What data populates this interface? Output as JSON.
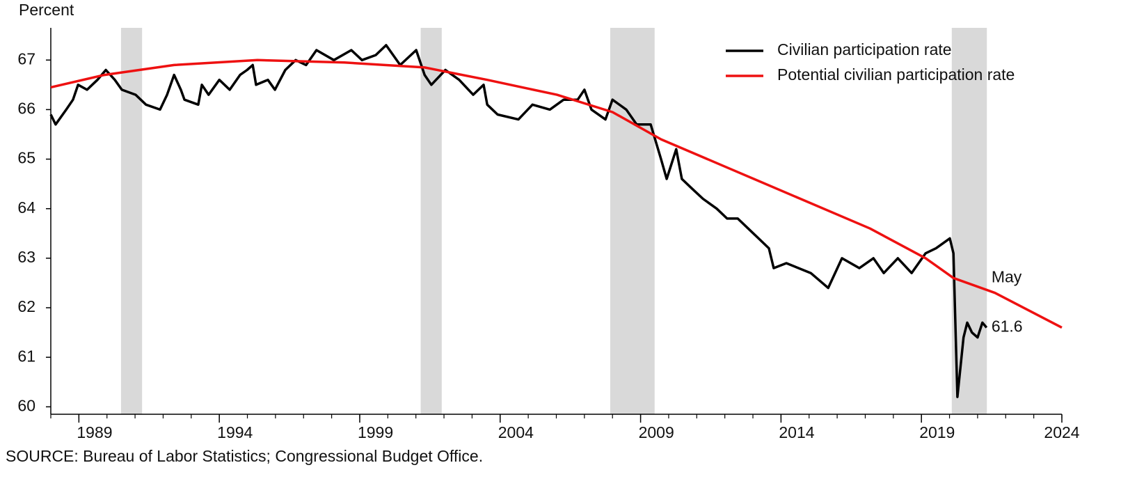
{
  "chart_data": {
    "type": "line",
    "y_axis_label": "Percent",
    "source": "SOURCE: Bureau of Labor Statistics; Congressional Budget Office.",
    "annotations": [
      "May",
      "61.6"
    ],
    "xlim": [
      1988,
      2024
    ],
    "xticks": [
      1989,
      1994,
      1999,
      2004,
      2009,
      2014,
      2019,
      2024
    ],
    "ylim": [
      59.85,
      67.65
    ],
    "yticks": [
      60,
      61,
      62,
      63,
      64,
      65,
      66,
      67
    ],
    "shaded_periods": [
      [
        1990.5,
        1991.25
      ],
      [
        2001.17,
        2001.92
      ],
      [
        2007.92,
        2009.5
      ],
      [
        2020.08,
        2021.33
      ]
    ],
    "shade_color": "#d9d9d9",
    "legend": "upper right",
    "series": [
      {
        "name": "Civilian participation rate",
        "color": "#000000",
        "x": [
          1988,
          1988.17,
          1988.55,
          1988.79,
          1988.97,
          1989.29,
          1989.66,
          1989.96,
          1990.28,
          1990.53,
          1991.02,
          1991.39,
          1991.89,
          1992.14,
          1992.39,
          1992.63,
          1992.76,
          1993.25,
          1993.38,
          1993.62,
          1994.0,
          1994.37,
          1994.74,
          1994.99,
          1995.19,
          1995.31,
          1995.73,
          1995.98,
          1996.35,
          1996.72,
          1997.09,
          1997.46,
          1998.08,
          1998.7,
          1999.08,
          1999.57,
          1999.94,
          2000.44,
          2001.01,
          2001.31,
          2001.55,
          2002.05,
          2002.54,
          2003.04,
          2003.41,
          2003.54,
          2003.91,
          2004.65,
          2005.15,
          2005.77,
          2006.26,
          2006.76,
          2007.0,
          2007.25,
          2007.75,
          2008.0,
          2008.49,
          2008.86,
          2009.36,
          2009.73,
          2009.93,
          2010.27,
          2010.47,
          2010.84,
          2011.22,
          2011.71,
          2012.08,
          2012.46,
          2012.83,
          2013.2,
          2013.57,
          2013.74,
          2014.19,
          2015.06,
          2015.68,
          2016.17,
          2016.79,
          2017.29,
          2017.66,
          2018.16,
          2018.65,
          2019.15,
          2019.52,
          2020.01,
          2020.14,
          2020.28,
          2020.5,
          2020.63,
          2020.8,
          2021.0,
          2021.17,
          2021.32
        ],
        "values": [
          65.9,
          65.7,
          66.0,
          66.2,
          66.5,
          66.4,
          66.6,
          66.8,
          66.6,
          66.4,
          66.3,
          66.1,
          66.0,
          66.3,
          66.7,
          66.4,
          66.2,
          66.1,
          66.5,
          66.3,
          66.6,
          66.4,
          66.7,
          66.8,
          66.9,
          66.5,
          66.6,
          66.4,
          66.8,
          67.0,
          66.9,
          67.2,
          67.0,
          67.2,
          67.0,
          67.1,
          67.3,
          66.9,
          67.2,
          66.7,
          66.5,
          66.8,
          66.6,
          66.3,
          66.5,
          66.1,
          65.9,
          65.8,
          66.1,
          66.0,
          66.2,
          66.2,
          66.4,
          66.0,
          65.8,
          66.2,
          66.0,
          65.7,
          65.7,
          65.0,
          64.6,
          65.2,
          64.6,
          64.4,
          64.2,
          64.0,
          63.8,
          63.8,
          63.6,
          63.4,
          63.2,
          62.8,
          62.9,
          62.7,
          62.4,
          63.0,
          62.8,
          63.0,
          62.7,
          63.0,
          62.7,
          63.1,
          63.2,
          63.4,
          63.1,
          60.2,
          61.4,
          61.7,
          61.5,
          61.4,
          61.7,
          61.6
        ]
      },
      {
        "name": "Potential civilian participation rate",
        "color": "#ee1111",
        "x": [
          1988,
          1989.91,
          1992.39,
          1995.36,
          1998.45,
          2001.31,
          2003.54,
          2006.02,
          2008.0,
          2009.73,
          2012.21,
          2014.69,
          2017.17,
          2019.15,
          2020.14,
          2021.62,
          2024
        ],
        "values": [
          66.45,
          66.7,
          66.9,
          67.0,
          66.95,
          66.85,
          66.6,
          66.3,
          65.95,
          65.4,
          64.8,
          64.2,
          63.6,
          63.0,
          62.6,
          62.3,
          61.6
        ]
      }
    ]
  }
}
